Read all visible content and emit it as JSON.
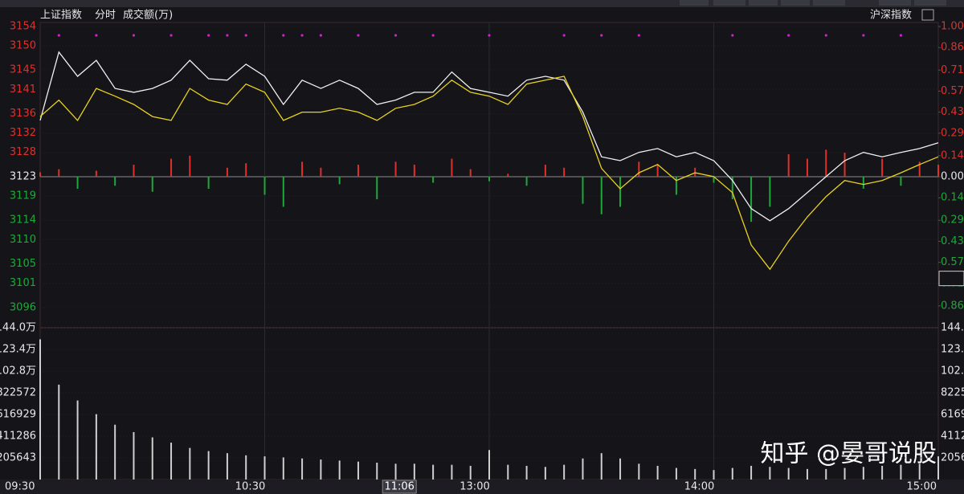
{
  "chart_data": {
    "type": "line",
    "title": "上证指数",
    "period": "分时",
    "volume_label": "成交额(万)",
    "compare_label": "沪深指数",
    "watermark": "知乎 @晏哥说股",
    "x": [
      "09:30",
      "09:35",
      "09:40",
      "09:45",
      "09:50",
      "09:55",
      "10:00",
      "10:05",
      "10:10",
      "10:15",
      "10:20",
      "10:25",
      "10:30",
      "10:35",
      "10:40",
      "10:45",
      "10:50",
      "10:55",
      "11:00",
      "11:05",
      "11:10",
      "11:15",
      "11:20",
      "11:25",
      "13:00",
      "13:05",
      "13:10",
      "13:15",
      "13:20",
      "13:25",
      "13:30",
      "13:35",
      "13:40",
      "13:45",
      "13:50",
      "13:55",
      "14:00",
      "14:05",
      "14:10",
      "14:15",
      "14:20",
      "14:25",
      "14:30",
      "14:35",
      "14:40",
      "14:45",
      "14:50",
      "14:55",
      "15:00"
    ],
    "xticks": [
      "09:30",
      "10:30",
      "13:00",
      "14:00",
      "15:00"
    ],
    "ylim": [
      3092,
      3154.8
    ],
    "yticks": [
      3154,
      3150,
      3145,
      3141,
      3136,
      3132,
      3128,
      3123,
      3119,
      3114,
      3110,
      3105,
      3101,
      3096
    ],
    "y2lim": [
      -1.0,
      1.027
    ],
    "y2ticks": [
      {
        "value": 1.0,
        "label": "1.00"
      },
      0.86,
      0.71,
      0.57,
      0.43,
      0.29,
      0.14,
      {
        "value": 0,
        "label": "0.00"
      },
      {
        "value": -0.14,
        "label": "0.14"
      },
      {
        "value": -0.29,
        "label": "0.29"
      },
      {
        "value": -0.43,
        "label": "0.43"
      },
      {
        "value": -0.57,
        "label": "0.57"
      },
      {
        "value": -0.71,
        "label": "0.71"
      },
      {
        "value": -0.86,
        "label": "0.86"
      }
    ],
    "series": [
      {
        "name": "上证指数",
        "color": "#f0f0f0",
        "values": [
          3134.6,
          3148.7,
          3143.7,
          3147.0,
          3141.2,
          3140.4,
          3141.2,
          3142.9,
          3147.0,
          3143.2,
          3142.9,
          3146.2,
          3143.7,
          3137.9,
          3142.9,
          3141.2,
          3142.9,
          3141.2,
          3137.9,
          3138.8,
          3140.4,
          3140.4,
          3144.6,
          3141.2,
          3140.4,
          3139.6,
          3142.9,
          3143.7,
          3142.9,
          3136.3,
          3127.1,
          3126.3,
          3128.0,
          3128.8,
          3127.1,
          3128.0,
          3126.3,
          3122.2,
          3116.4,
          3113.9,
          3116.4,
          3119.7,
          3123.0,
          3126.3,
          3128.0,
          3127.1,
          3128.0,
          3128.8,
          3130.0
        ]
      },
      {
        "color": "#e8d21e",
        "values": [
          3135.4,
          3138.8,
          3134.6,
          3141.2,
          3139.6,
          3137.9,
          3135.4,
          3134.6,
          3141.2,
          3138.8,
          3137.9,
          3142.1,
          3140.4,
          3134.6,
          3136.3,
          3136.3,
          3137.1,
          3136.3,
          3134.6,
          3137.1,
          3137.9,
          3139.6,
          3142.9,
          3140.4,
          3139.6,
          3137.9,
          3142.1,
          3142.9,
          3143.7,
          3135.4,
          3124.7,
          3120.5,
          3123.8,
          3125.5,
          3122.2,
          3123.8,
          3123.0,
          3119.7,
          3108.9,
          3103.9,
          3109.7,
          3114.7,
          3118.9,
          3122.2,
          3121.4,
          3122.2,
          3123.8,
          3125.5,
          3127.1
        ]
      }
    ],
    "breadth": {
      "axis": "y2",
      "up_color": "#e0302c",
      "down_color": "#1fa83a",
      "values": [
        0.03,
        0.05,
        -0.08,
        0.04,
        -0.06,
        0.08,
        -0.1,
        0.12,
        0.14,
        -0.08,
        0.06,
        0.09,
        -0.12,
        -0.2,
        0.1,
        0.06,
        -0.05,
        0.08,
        -0.15,
        0.1,
        0.08,
        -0.04,
        0.12,
        0.05,
        -0.03,
        0.02,
        -0.06,
        0.08,
        0.06,
        -0.18,
        -0.25,
        -0.2,
        0.1,
        0.08,
        -0.12,
        0.06,
        -0.04,
        -0.15,
        -0.3,
        -0.2,
        0.15,
        0.12,
        0.18,
        0.16,
        -0.08,
        0.12,
        -0.06,
        0.1,
        0.08
      ]
    },
    "signals": {
      "color": "#d020d0",
      "x": [
        "09:35",
        "09:45",
        "09:55",
        "10:05",
        "10:15",
        "10:20",
        "10:25",
        "10:35",
        "10:40",
        "10:45",
        "10:55",
        "11:05",
        "11:15",
        "13:00",
        "13:20",
        "13:30",
        "13:40",
        "14:05",
        "14:20",
        "14:30",
        "14:40",
        "14:50"
      ]
    },
    "volume": {
      "color": "#cfcfcf",
      "ylim": [
        0,
        1440000
      ],
      "yticks": [
        {
          "value": 1440000,
          "label": "144.0万"
        },
        {
          "value": 1234000,
          "label": "123.4万"
        },
        {
          "value": 1028000,
          "label": "102.8万"
        },
        822572,
        616929,
        411286,
        205643
      ],
      "values": [
        1330000,
        900000,
        750000,
        620000,
        520000,
        450000,
        400000,
        350000,
        300000,
        270000,
        250000,
        230000,
        220000,
        210000,
        200000,
        190000,
        180000,
        170000,
        160000,
        150000,
        150000,
        140000,
        140000,
        130000,
        280000,
        140000,
        130000,
        120000,
        140000,
        200000,
        250000,
        200000,
        150000,
        130000,
        110000,
        100000,
        90000,
        110000,
        130000,
        120000,
        110000,
        100000,
        100000,
        110000,
        120000,
        130000,
        140000,
        150000,
        220000
      ]
    },
    "crosshair": {
      "x": "11:06",
      "y": 3102
    },
    "grid": true
  }
}
